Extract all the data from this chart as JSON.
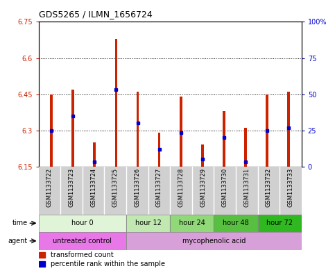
{
  "title": "GDS5265 / ILMN_1656724",
  "samples": [
    "GSM1133722",
    "GSM1133723",
    "GSM1133724",
    "GSM1133725",
    "GSM1133726",
    "GSM1133727",
    "GSM1133728",
    "GSM1133729",
    "GSM1133730",
    "GSM1133731",
    "GSM1133732",
    "GSM1133733"
  ],
  "bar_bottom": [
    6.15,
    6.15,
    6.15,
    6.15,
    6.15,
    6.15,
    6.15,
    6.15,
    6.15,
    6.15,
    6.15,
    6.15
  ],
  "bar_top": [
    6.45,
    6.47,
    6.25,
    6.68,
    6.46,
    6.29,
    6.44,
    6.24,
    6.38,
    6.31,
    6.45,
    6.46
  ],
  "percentile": [
    6.3,
    6.36,
    6.17,
    6.47,
    6.33,
    6.22,
    6.29,
    6.18,
    6.27,
    6.17,
    6.3,
    6.31
  ],
  "ylim_left": [
    6.15,
    6.75
  ],
  "ylim_right": [
    0,
    100
  ],
  "yticks_left": [
    6.15,
    6.3,
    6.45,
    6.6,
    6.75
  ],
  "yticks_right": [
    0,
    25,
    50,
    75,
    100
  ],
  "ytick_labels_left": [
    "6.15",
    "6.3",
    "6.45",
    "6.6",
    "6.75"
  ],
  "ytick_labels_right": [
    "0",
    "25",
    "50",
    "75",
    "100%"
  ],
  "gridlines": [
    6.3,
    6.45,
    6.6
  ],
  "time_groups": [
    {
      "label": "hour 0",
      "start": 0,
      "end": 4,
      "color": "#e0f5d8"
    },
    {
      "label": "hour 12",
      "start": 4,
      "end": 6,
      "color": "#c0e8b0"
    },
    {
      "label": "hour 24",
      "start": 6,
      "end": 8,
      "color": "#90d878"
    },
    {
      "label": "hour 48",
      "start": 8,
      "end": 10,
      "color": "#58c040"
    },
    {
      "label": "hour 72",
      "start": 10,
      "end": 12,
      "color": "#30b820"
    }
  ],
  "agent_groups": [
    {
      "label": "untreated control",
      "start": 0,
      "end": 4,
      "color": "#e878e8"
    },
    {
      "label": "mycophenolic acid",
      "start": 4,
      "end": 12,
      "color": "#d8a0d8"
    }
  ],
  "bar_color": "#cc2200",
  "percentile_color": "#0000cc",
  "sample_bg_color": "#d0d0d0",
  "sample_border_color": "#ffffff",
  "plot_bg": "#ffffff",
  "left_tick_color": "#cc2200",
  "right_tick_color": "#0000cc",
  "bar_width": 0.12,
  "time_label": "time",
  "agent_label": "agent",
  "legend_bar": "transformed count",
  "legend_pct": "percentile rank within the sample",
  "title_fontsize": 9,
  "tick_fontsize": 7,
  "sample_fontsize": 6,
  "row_label_fontsize": 7,
  "row_text_fontsize": 7,
  "legend_fontsize": 7
}
